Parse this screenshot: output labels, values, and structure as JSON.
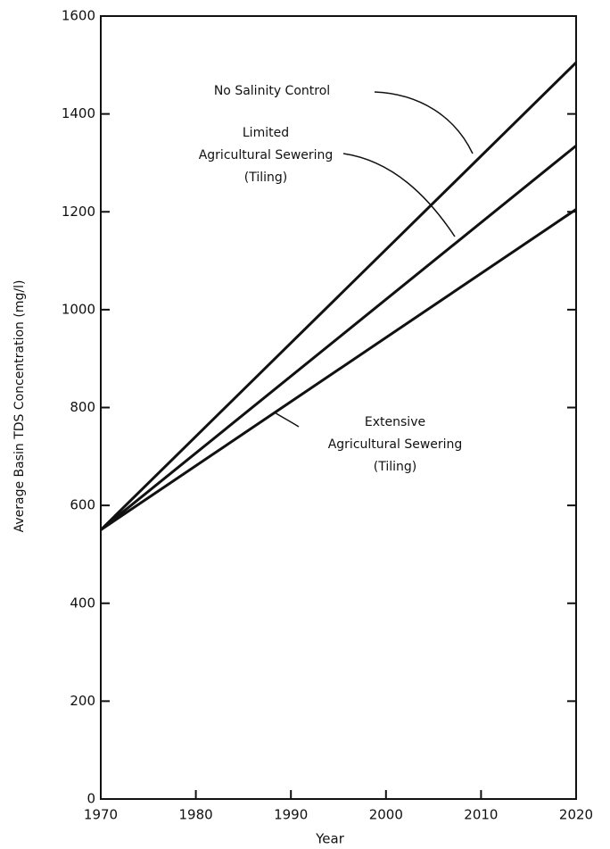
{
  "chart_data": {
    "type": "line",
    "xlabel": "Year",
    "ylabel": "Average Basin TDS Concentration (mg/l)",
    "x": [
      1970,
      2020
    ],
    "series": [
      {
        "name": "No Salinity Control",
        "color": "#111111",
        "values": [
          550,
          1505
        ]
      },
      {
        "name": "Limited\nAgricultural Sewering\n(Tiling)",
        "color": "#111111",
        "values": [
          550,
          1335
        ]
      },
      {
        "name": "Extensive\nAgricultural Sewering\n(Tiling)",
        "color": "#111111",
        "values": [
          550,
          1205
        ]
      }
    ],
    "xlim": [
      1970,
      2020
    ],
    "xticks": [
      1970,
      1980,
      1990,
      2000,
      2010,
      2020
    ],
    "ylim": [
      0,
      1600
    ],
    "yticks": [
      0,
      200,
      400,
      600,
      800,
      1000,
      1200,
      1400,
      1600
    ],
    "grid": false
  }
}
